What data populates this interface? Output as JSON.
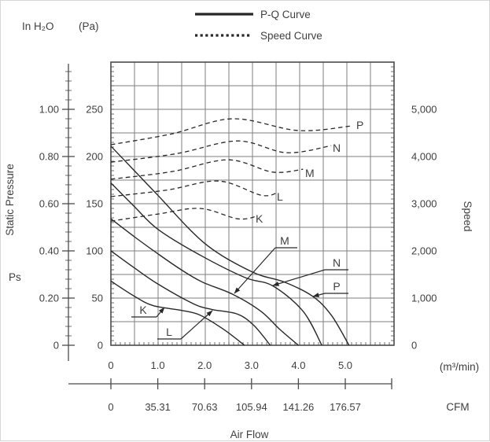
{
  "chart_data": {
    "type": "line",
    "grid": true,
    "legend": [
      {
        "label": "P-Q Curve",
        "style": "solid"
      },
      {
        "label": "Speed Curve",
        "style": "dotted"
      }
    ],
    "axes": {
      "x": {
        "label": "Air Flow",
        "range_m3min": [
          0,
          6.04
        ],
        "units": [
          {
            "name": "(m³/min)",
            "tick_values": [
              0,
              1,
              2,
              3,
              4,
              5
            ],
            "tick_labels": [
              "0",
              "1.0",
              "2.0",
              "3.0",
              "4.0",
              "5.0"
            ]
          },
          {
            "name": "CFM",
            "tick_values": [
              0,
              35.31,
              70.63,
              105.94,
              141.26,
              176.57
            ],
            "tick_labels": [
              "0",
              "35.31",
              "70.63",
              "105.94",
              "141.26",
              "176.57"
            ]
          }
        ]
      },
      "y_pressure": {
        "title": "Static Pressure",
        "symbol": "Ps",
        "range_pa": [
          0,
          300
        ],
        "tick_values_pa": [
          250,
          200,
          150,
          100,
          50,
          0
        ],
        "units": [
          {
            "name": "In H₂O",
            "tick_labels": [
              "1.00",
              "0.80",
              "0.60",
              "0.40",
              "0.20",
              "0"
            ]
          },
          {
            "name": "(Pa)",
            "tick_labels": [
              "250",
              "200",
              "150",
              "100",
              "50",
              "0"
            ]
          }
        ]
      },
      "y_speed": {
        "title": "Speed",
        "range_rpm": [
          0,
          6000
        ],
        "tick_values": [
          5000,
          4000,
          3000,
          2000,
          1000,
          0
        ],
        "tick_labels": [
          "5,000",
          "4,000",
          "3,000",
          "2,000",
          "1,000",
          "0"
        ]
      }
    },
    "pq_curves": [
      {
        "name": "K",
        "points_m3min_pa": [
          [
            0,
            68
          ],
          [
            0.5,
            52
          ],
          [
            0.9,
            42
          ],
          [
            1.5,
            37
          ],
          [
            1.9,
            32
          ],
          [
            2.4,
            17
          ],
          [
            2.85,
            0
          ]
        ]
      },
      {
        "name": "L",
        "points_m3min_pa": [
          [
            0,
            100
          ],
          [
            0.5,
            82
          ],
          [
            1.0,
            65
          ],
          [
            1.76,
            44
          ],
          [
            2.15,
            38
          ],
          [
            2.7,
            33
          ],
          [
            3.05,
            21
          ],
          [
            3.4,
            0
          ]
        ]
      },
      {
        "name": "M",
        "points_m3min_pa": [
          [
            0,
            134
          ],
          [
            0.5,
            115
          ],
          [
            1.0,
            97
          ],
          [
            1.5,
            80
          ],
          [
            1.95,
            67
          ],
          [
            2.6,
            54
          ],
          [
            3.2,
            36
          ],
          [
            3.6,
            17
          ],
          [
            4.0,
            0
          ]
        ]
      },
      {
        "name": "N",
        "points_m3min_pa": [
          [
            0,
            172
          ],
          [
            0.5,
            147
          ],
          [
            1.0,
            123
          ],
          [
            1.85,
            97
          ],
          [
            2.85,
            72
          ],
          [
            3.45,
            63
          ],
          [
            4.1,
            36
          ],
          [
            4.5,
            0
          ]
        ]
      },
      {
        "name": "P",
        "points_m3min_pa": [
          [
            0,
            211
          ],
          [
            0.5,
            185
          ],
          [
            1.0,
            159
          ],
          [
            2.0,
            108
          ],
          [
            3.0,
            78
          ],
          [
            3.7,
            67
          ],
          [
            4.3,
            52
          ],
          [
            4.7,
            32
          ],
          [
            5.08,
            0
          ]
        ]
      }
    ],
    "speed_curves": [
      {
        "name": "K",
        "points_m3min_rpm": [
          [
            0,
            2630
          ],
          [
            1.0,
            2780
          ],
          [
            1.9,
            2900
          ],
          [
            2.7,
            2680
          ],
          [
            3.1,
            2730
          ]
        ]
      },
      {
        "name": "L",
        "points_m3min_rpm": [
          [
            0,
            3150
          ],
          [
            1.2,
            3290
          ],
          [
            2.3,
            3480
          ],
          [
            3.2,
            3180
          ],
          [
            3.55,
            3230
          ]
        ]
      },
      {
        "name": "M",
        "points_m3min_rpm": [
          [
            0,
            3520
          ],
          [
            1.3,
            3680
          ],
          [
            2.5,
            3930
          ],
          [
            3.45,
            3670
          ],
          [
            4.1,
            3730
          ]
        ]
      },
      {
        "name": "N",
        "points_m3min_rpm": [
          [
            0,
            3880
          ],
          [
            1.4,
            4060
          ],
          [
            2.7,
            4330
          ],
          [
            3.75,
            4080
          ],
          [
            4.7,
            4230
          ]
        ]
      },
      {
        "name": "P",
        "points_m3min_rpm": [
          [
            0,
            4250
          ],
          [
            1.3,
            4480
          ],
          [
            2.6,
            4800
          ],
          [
            4.0,
            4550
          ],
          [
            5.15,
            4650
          ]
        ]
      }
    ]
  }
}
